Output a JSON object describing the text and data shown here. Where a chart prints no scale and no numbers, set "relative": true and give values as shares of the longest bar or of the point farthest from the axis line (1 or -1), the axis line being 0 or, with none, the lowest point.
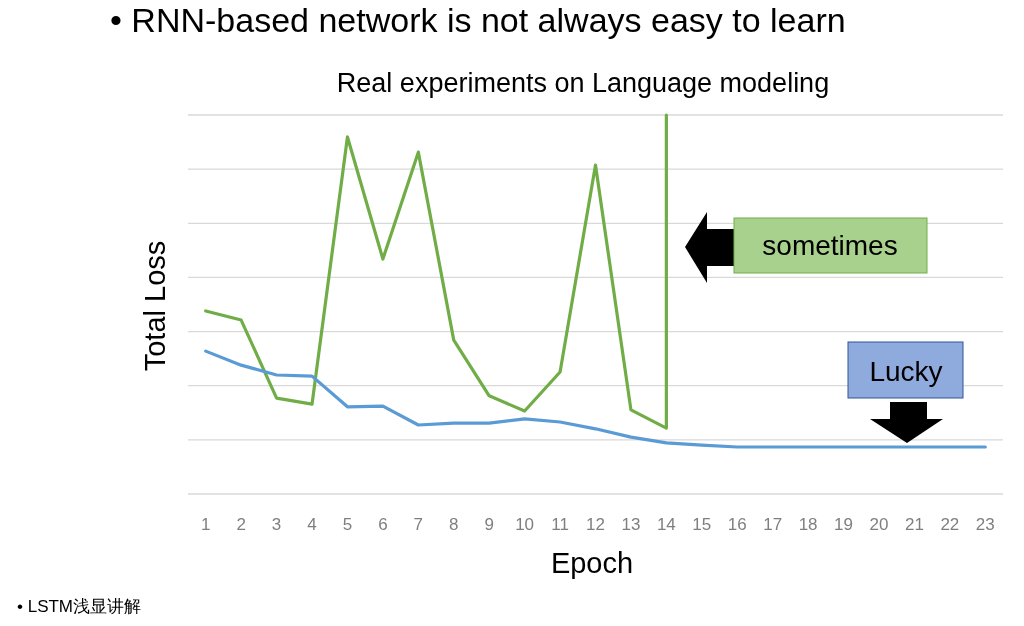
{
  "chart_data": {
    "type": "line",
    "title": "• RNN-based network is not always easy to learn",
    "subtitle": "Real experiments on Language modeling",
    "xlabel": "Epoch",
    "ylabel": "Total Loss",
    "relative": true,
    "grid": "y",
    "xlim": [
      0.5,
      23.5
    ],
    "xticks": [
      1,
      2,
      3,
      4,
      5,
      6,
      7,
      8,
      9,
      10,
      11,
      12,
      13,
      14,
      15,
      16,
      17,
      18,
      19,
      20,
      21,
      22,
      23
    ],
    "series": [
      {
        "color": "#70ad47",
        "x": [
          1,
          2,
          3,
          4,
          5,
          6,
          7,
          8,
          9,
          10,
          11,
          12,
          13,
          14,
          14
        ],
        "values": [
          0.483,
          0.459,
          0.253,
          0.237,
          0.942,
          0.62,
          0.902,
          0.406,
          0.259,
          0.219,
          0.322,
          0.868,
          0.222,
          0.174,
          1
        ]
      },
      {
        "color": "#5b9bd5",
        "x": [
          1,
          2,
          3,
          4,
          5,
          6,
          7,
          8,
          9,
          10,
          11,
          12,
          13,
          14,
          15,
          16,
          17,
          18,
          19,
          20,
          21,
          22,
          23
        ],
        "values": [
          0.377,
          0.34,
          0.314,
          0.311,
          0.23,
          0.232,
          0.182,
          0.187,
          0.187,
          0.198,
          0.19,
          0.172,
          0.15,
          0.135,
          0.129,
          0.124,
          0.124,
          0.124,
          0.124,
          0.124,
          0.124,
          0.124,
          0.124
        ]
      }
    ],
    "annotations": [
      "sometimes",
      "Lucky",
      "•  LSTM浅显讲解"
    ]
  }
}
